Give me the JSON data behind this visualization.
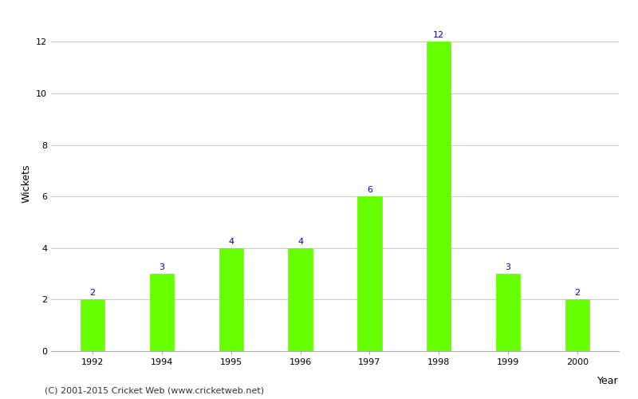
{
  "categories": [
    "1992",
    "1994",
    "1995",
    "1996",
    "1997",
    "1998",
    "1999",
    "2000"
  ],
  "values": [
    2,
    3,
    4,
    4,
    6,
    12,
    3,
    2
  ],
  "bar_color": "#66ff00",
  "bar_edgecolor": "#66ff00",
  "title": "",
  "xlabel": "Year",
  "ylabel": "Wickets",
  "ylim": [
    0,
    13
  ],
  "yticks": [
    0,
    2,
    4,
    6,
    8,
    10,
    12
  ],
  "label_color": "#0000cc",
  "label_fontsize": 8,
  "axis_label_fontsize": 9,
  "tick_fontsize": 8,
  "footer_text": "(C) 2001-2015 Cricket Web (www.cricketweb.net)",
  "footer_fontsize": 8,
  "background_color": "#ffffff",
  "grid_color": "#cccccc",
  "bar_width": 0.35
}
